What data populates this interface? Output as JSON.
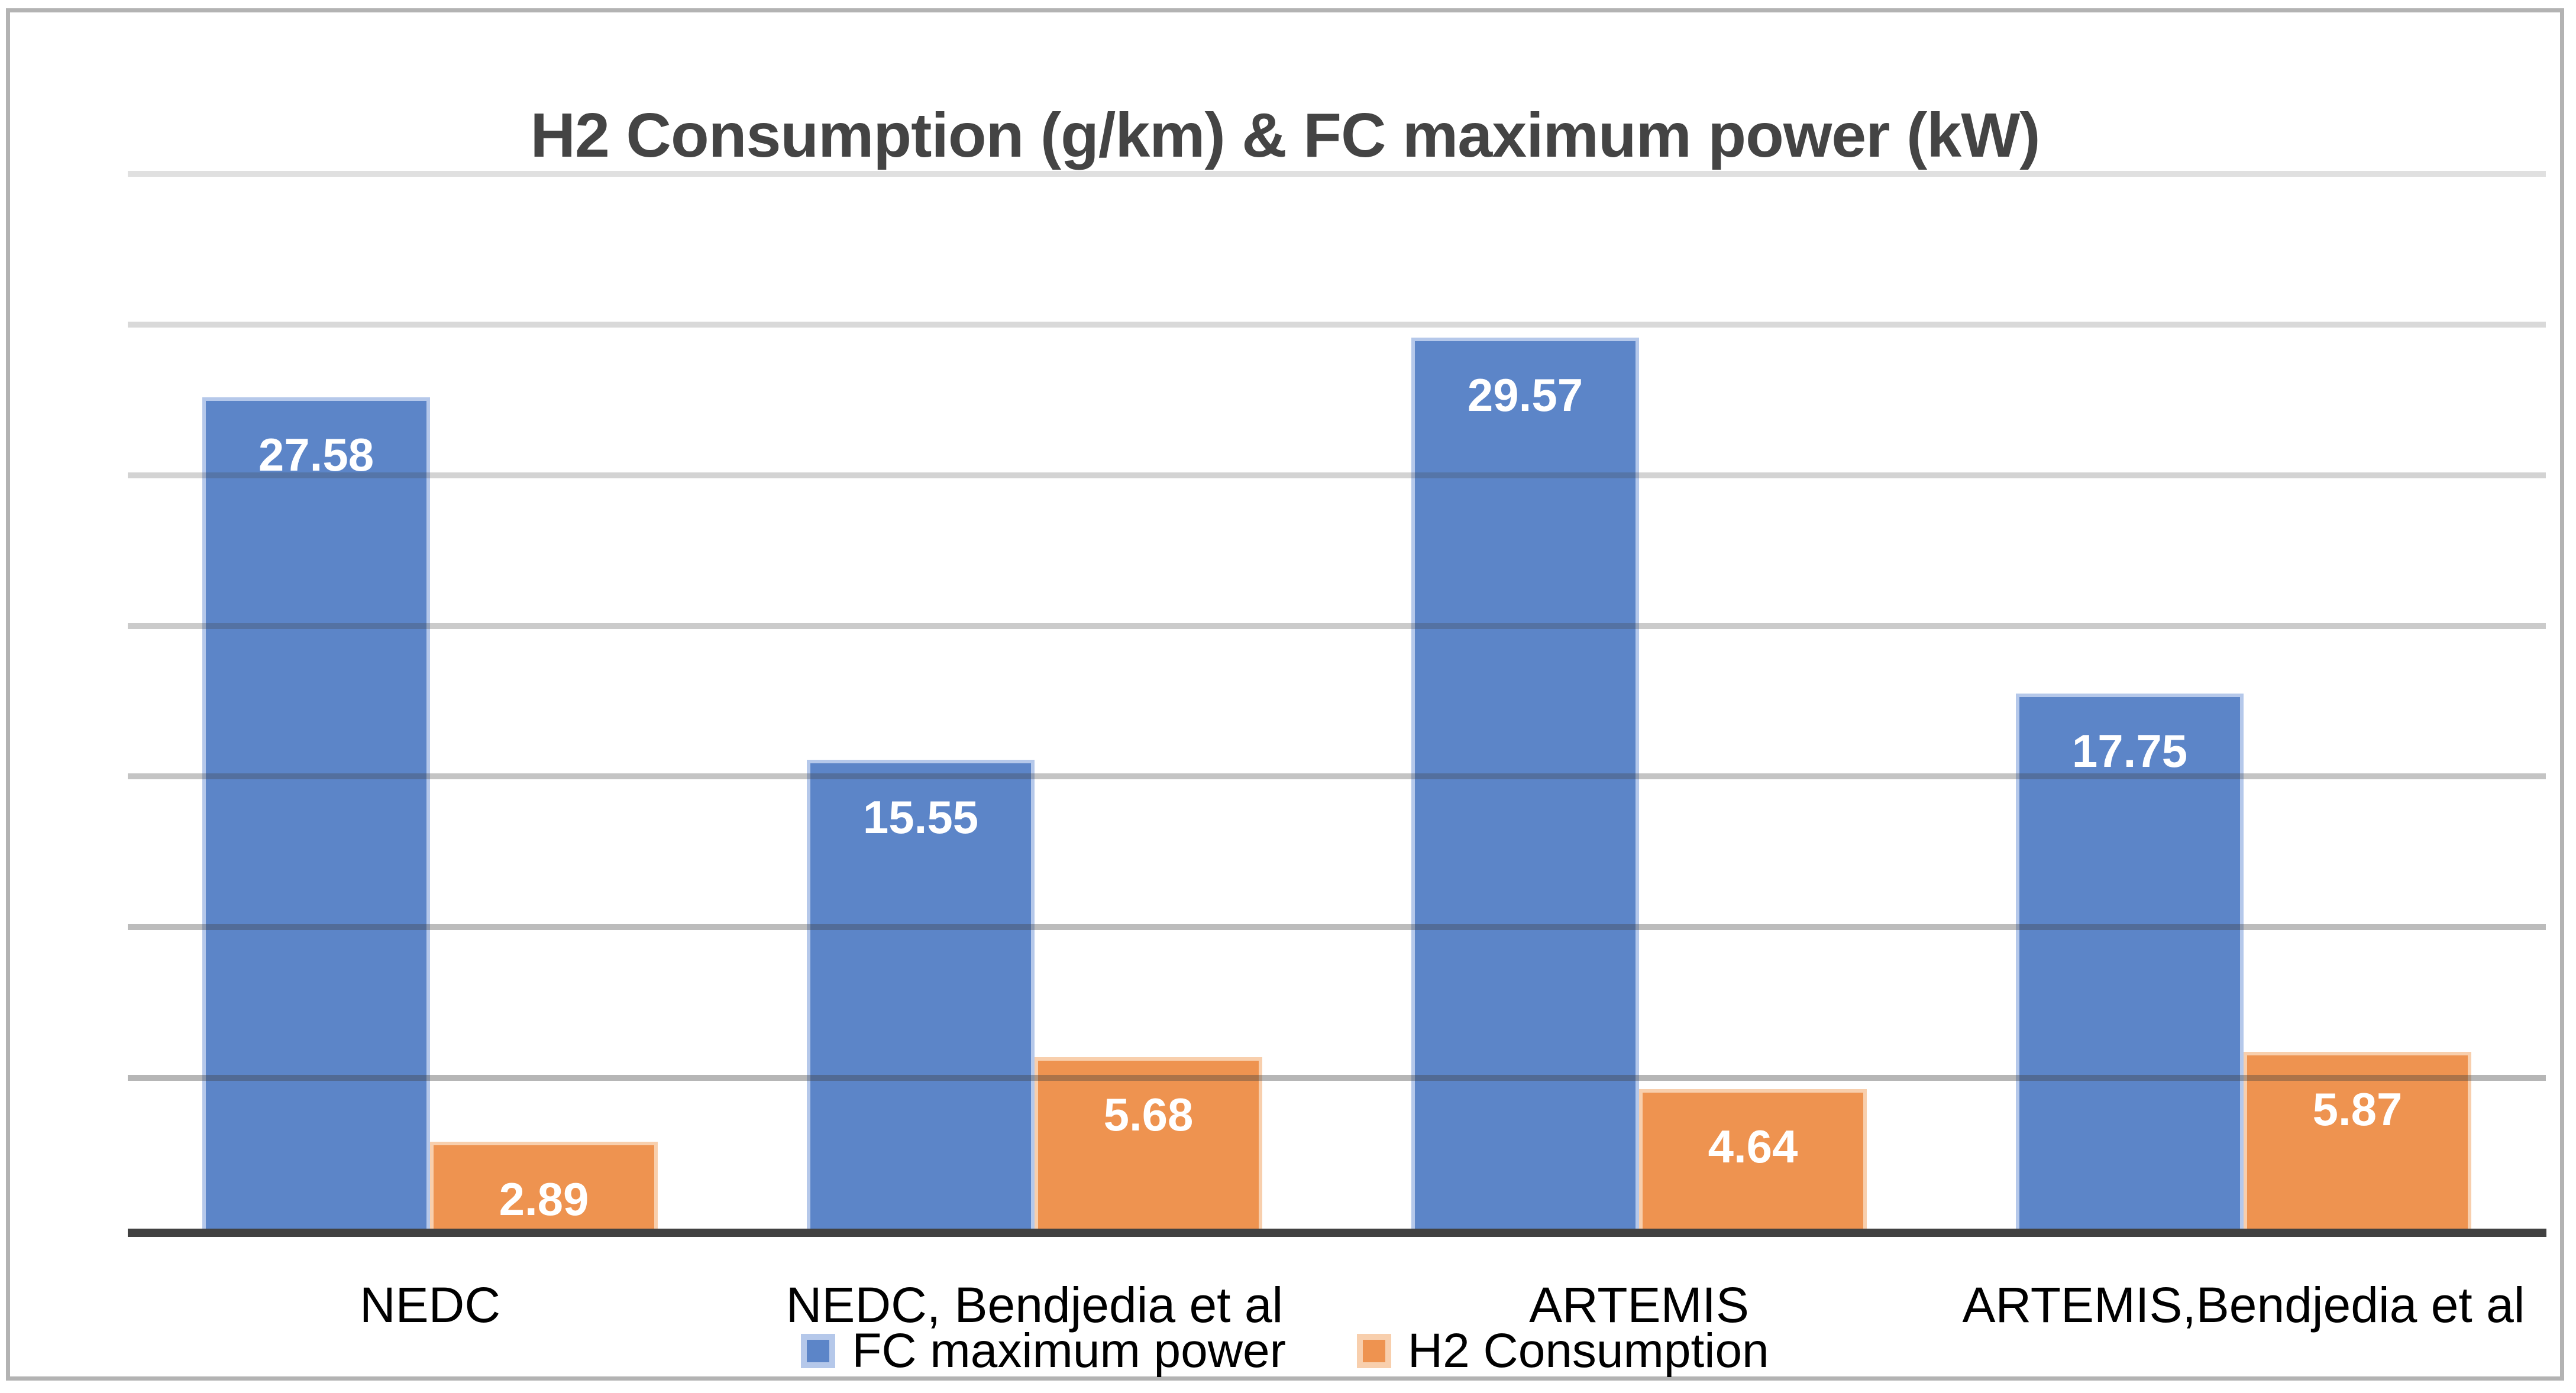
{
  "chart_data": {
    "type": "bar",
    "title": "H2 Consumption (g/km) & FC maximum power (kW)",
    "categories": [
      "NEDC",
      "NEDC, Bendjedia et al",
      "ARTEMIS",
      "ARTEMIS,Bendjedia et al"
    ],
    "series": [
      {
        "name": "FC maximum power",
        "values": [
          27.58,
          15.55,
          29.57,
          17.75
        ],
        "data_labels": [
          "27.58",
          "15.55",
          "29.57",
          "17.75"
        ],
        "color": "#5c85c8",
        "border_color": "#b5c8ea"
      },
      {
        "name": "H2 Consumption",
        "values": [
          2.89,
          5.68,
          4.64,
          5.87
        ],
        "data_labels": [
          "2.89",
          "5.68",
          "4.64",
          "5.87"
        ],
        "color": "#ee9350",
        "border_color": "#f8cfad"
      }
    ],
    "ylim": [
      0,
      35
    ],
    "gridline_step": 5,
    "grid": true,
    "y_axis_labels_visible": false,
    "legend_position": "bottom",
    "data_label_color": "#ffffff"
  },
  "colors": {
    "title": "#444444",
    "axis_line": "#414141",
    "gridline": "#3f3f3f",
    "frame_border": "#b3b3b3",
    "background": "#ffffff",
    "category_text": "#000000",
    "legend_text": "#000000"
  }
}
